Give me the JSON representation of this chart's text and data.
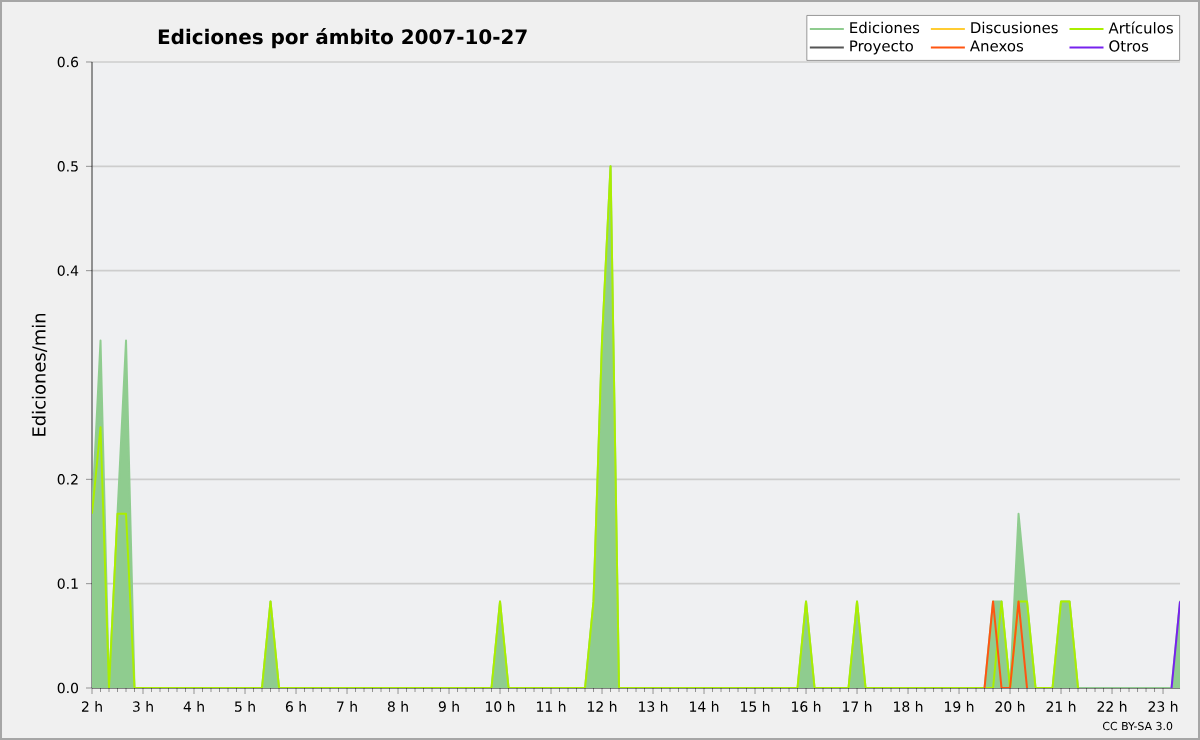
{
  "chart_data": {
    "type": "line",
    "title": "Ediciones por ámbito  2007-10-27",
    "ylabel": "Ediciones/min",
    "xlim": [
      2,
      23.333
    ],
    "ylim": [
      0,
      0.6
    ],
    "xticks": [
      {
        "value": 2,
        "label": "2 h"
      },
      {
        "value": 3,
        "label": "3 h"
      },
      {
        "value": 4,
        "label": "4 h"
      },
      {
        "value": 5,
        "label": "5 h"
      },
      {
        "value": 6,
        "label": "6 h"
      },
      {
        "value": 7,
        "label": "7 h"
      },
      {
        "value": 8,
        "label": "8 h"
      },
      {
        "value": 9,
        "label": "9 h"
      },
      {
        "value": 10,
        "label": "10 h"
      },
      {
        "value": 11,
        "label": "11 h"
      },
      {
        "value": 12,
        "label": "12 h"
      },
      {
        "value": 13,
        "label": "13 h"
      },
      {
        "value": 14,
        "label": "14 h"
      },
      {
        "value": 15,
        "label": "15 h"
      },
      {
        "value": 16,
        "label": "16 h"
      },
      {
        "value": 17,
        "label": "17 h"
      },
      {
        "value": 18,
        "label": "18 h"
      },
      {
        "value": 19,
        "label": "19 h"
      },
      {
        "value": 20,
        "label": "20 h"
      },
      {
        "value": 21,
        "label": "21 h"
      },
      {
        "value": 22,
        "label": "22 h"
      },
      {
        "value": 23,
        "label": "23 h"
      }
    ],
    "yticks": [
      {
        "value": 0,
        "label": "0.0"
      },
      0.1,
      0.2,
      0.4,
      0.5,
      0.6
    ],
    "grid": "y",
    "legend": "top right",
    "annotations": [
      "CC BY-SA 3.0"
    ],
    "series": [
      {
        "name": "Ediciones",
        "type": "area",
        "color": "#8fcc8f",
        "x": [
          2.0,
          2.167,
          2.333,
          2.5,
          2.667,
          2.833,
          5.333,
          5.5,
          5.667,
          9.833,
          10.0,
          10.167,
          11.667,
          11.833,
          12.0,
          12.167,
          12.333,
          15.833,
          16.0,
          16.167,
          16.833,
          17.0,
          17.167,
          19.5,
          19.667,
          19.833,
          20.0,
          20.167,
          20.333,
          20.5,
          20.833,
          21.0,
          21.167,
          21.333,
          23.167,
          23.333
        ],
        "values": [
          0.167,
          0.333,
          0,
          0.167,
          0.333,
          0,
          0,
          0.083,
          0,
          0,
          0.083,
          0,
          0,
          0.083,
          0.333,
          0.5,
          0,
          0,
          0.083,
          0,
          0,
          0.083,
          0,
          0,
          0.083,
          0.083,
          0,
          0.167,
          0.083,
          0,
          0,
          0.083,
          0.083,
          0,
          0,
          0.083
        ]
      },
      {
        "name": "Discusiones",
        "color": "#ffcc33"
      },
      {
        "name": "Artículos",
        "color": "#aaee00",
        "x": [
          2.0,
          2.167,
          2.333,
          2.5,
          2.667,
          2.833,
          5.333,
          5.5,
          5.667,
          9.833,
          10.0,
          10.167,
          11.667,
          11.833,
          12.0,
          12.167,
          12.333,
          15.833,
          16.0,
          16.167,
          16.833,
          17.0,
          17.167,
          19.667,
          19.833,
          20.0,
          20.167,
          20.333,
          20.5,
          20.833,
          21.0,
          21.167,
          21.333
        ],
        "values": [
          0.167,
          0.25,
          0,
          0.167,
          0.167,
          0,
          0,
          0.083,
          0,
          0,
          0.083,
          0,
          0,
          0.083,
          0.333,
          0.5,
          0,
          0,
          0.083,
          0,
          0,
          0.083,
          0,
          0,
          0.083,
          0,
          0.083,
          0.083,
          0,
          0,
          0.083,
          0.083,
          0
        ]
      },
      {
        "name": "Proyecto",
        "color": "#555555"
      },
      {
        "name": "Anexos",
        "color": "#ff5511",
        "x": [
          19.5,
          19.667,
          19.833,
          20.0,
          20.167,
          20.333
        ],
        "values": [
          0,
          0.083,
          0,
          0,
          0.083,
          0
        ]
      },
      {
        "name": "Otros",
        "color": "#7722ee",
        "x": [
          23.167,
          23.333
        ],
        "values": [
          0,
          0.083
        ]
      }
    ]
  }
}
